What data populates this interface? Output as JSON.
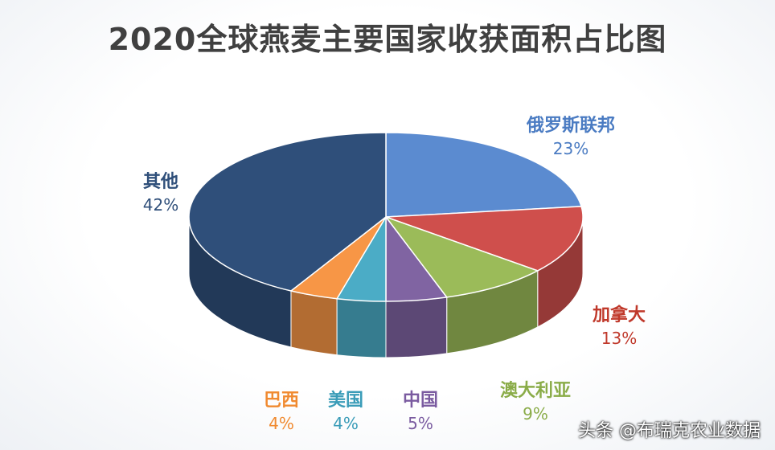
{
  "chart_data": {
    "type": "pie",
    "title": "2020全球燕麦主要国家收获面积占比图",
    "slices": [
      {
        "name": "俄罗斯联邦",
        "value": 23,
        "label": "23%",
        "color": "#5b8bd0"
      },
      {
        "name": "加拿大",
        "value": 13,
        "label": "13%",
        "color": "#cf4f4c"
      },
      {
        "name": "澳大利亚",
        "value": 9,
        "label": "9%",
        "color": "#9bbb59"
      },
      {
        "name": "中国",
        "value": 5,
        "label": "5%",
        "color": "#8064a2"
      },
      {
        "name": "美国",
        "value": 4,
        "label": "4%",
        "color": "#4bacc6"
      },
      {
        "name": "巴西",
        "value": 4,
        "label": "4%",
        "color": "#f79646"
      },
      {
        "name": "其他",
        "value": 42,
        "label": "42%",
        "color": "#2f4f7a"
      }
    ]
  },
  "watermark": "头条 @布瑞克农业数据"
}
